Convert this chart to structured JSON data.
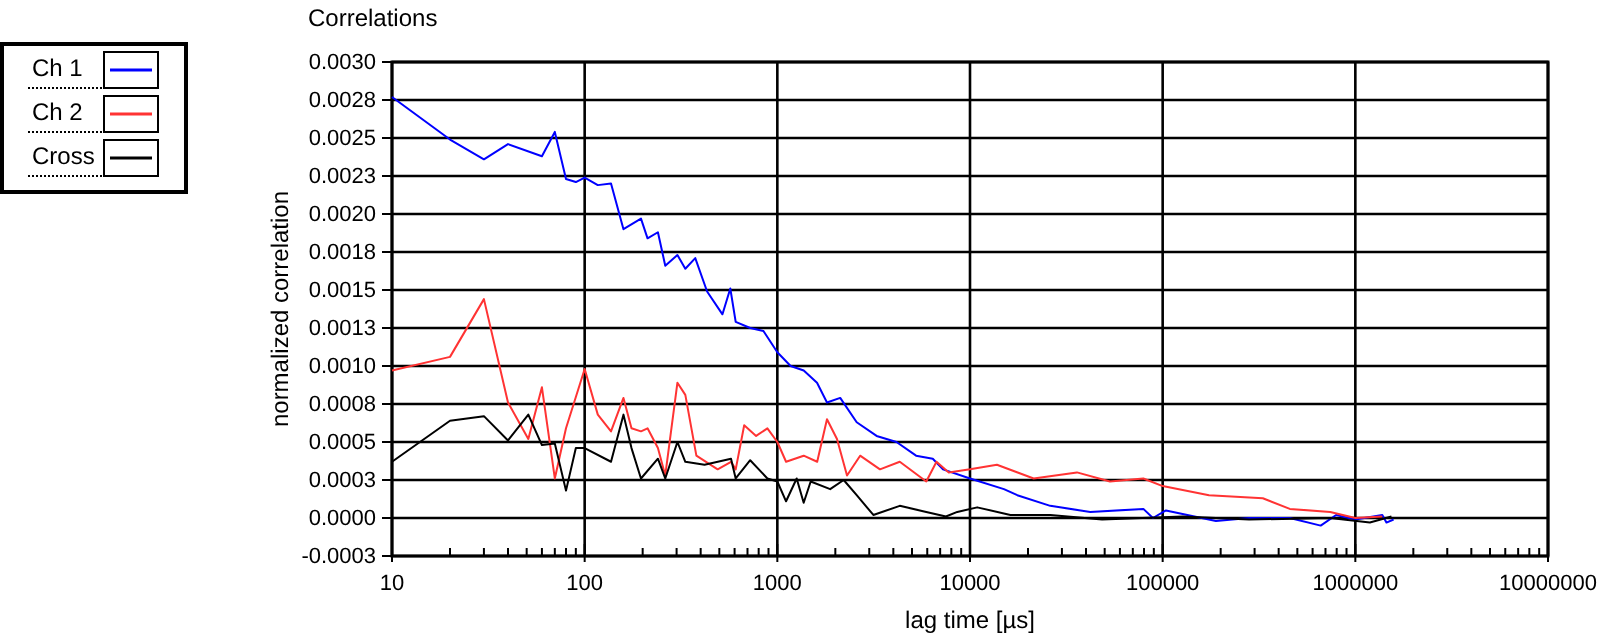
{
  "chart_data": {
    "type": "line",
    "title": "Correlations",
    "xlabel": "lag time [µs]",
    "ylabel": "normalized correlation",
    "log": "x",
    "grid": true,
    "legend": "top left",
    "line_style": "solid",
    "marker": "none",
    "xlim": [
      10,
      10000000
    ],
    "xticks": [
      10,
      {
        "value": 20,
        "label": null
      },
      {
        "value": 30,
        "label": null
      },
      {
        "value": 40,
        "label": null
      },
      {
        "value": 50,
        "label": null
      },
      {
        "value": 60,
        "label": null
      },
      {
        "value": 70,
        "label": null
      },
      {
        "value": 80,
        "label": null
      },
      {
        "value": 90,
        "label": null
      },
      100,
      {
        "value": 200,
        "label": null
      },
      {
        "value": 300,
        "label": null
      },
      {
        "value": 400,
        "label": null
      },
      {
        "value": 500,
        "label": null
      },
      {
        "value": 600,
        "label": null
      },
      {
        "value": 700,
        "label": null
      },
      {
        "value": 800,
        "label": null
      },
      {
        "value": 900,
        "label": null
      },
      1000,
      {
        "value": 2000,
        "label": null
      },
      {
        "value": 3000,
        "label": null
      },
      {
        "value": 4000,
        "label": null
      },
      {
        "value": 5000,
        "label": null
      },
      {
        "value": 6000,
        "label": null
      },
      {
        "value": 7000,
        "label": null
      },
      {
        "value": 8000,
        "label": null
      },
      {
        "value": 9000,
        "label": null
      },
      10000,
      {
        "value": 20000,
        "label": null
      },
      {
        "value": 30000,
        "label": null
      },
      {
        "value": 40000,
        "label": null
      },
      {
        "value": 50000,
        "label": null
      },
      {
        "value": 60000,
        "label": null
      },
      {
        "value": 70000,
        "label": null
      },
      {
        "value": 80000,
        "label": null
      },
      {
        "value": 90000,
        "label": null
      },
      100000,
      {
        "value": 200000,
        "label": null
      },
      {
        "value": 300000,
        "label": null
      },
      {
        "value": 400000,
        "label": null
      },
      {
        "value": 500000,
        "label": null
      },
      {
        "value": 600000,
        "label": null
      },
      {
        "value": 700000,
        "label": null
      },
      {
        "value": 800000,
        "label": null
      },
      {
        "value": 900000,
        "label": null
      },
      1000000,
      {
        "value": 2000000,
        "label": null
      },
      {
        "value": 3000000,
        "label": null
      },
      {
        "value": 4000000,
        "label": null
      },
      {
        "value": 5000000,
        "label": null
      },
      {
        "value": 6000000,
        "label": null
      },
      {
        "value": 7000000,
        "label": null
      },
      {
        "value": 8000000,
        "label": null
      },
      {
        "value": 9000000,
        "label": null
      },
      10000000
    ],
    "ylim": [
      -0.00025,
      0.003
    ],
    "yticks": [
      {
        "value": -0.00025,
        "label": "-0.0003"
      },
      {
        "value": 0,
        "label": "0.0000"
      },
      {
        "value": 0.00025,
        "label": "0.0003"
      },
      {
        "value": 0.0005,
        "label": "0.0005"
      },
      {
        "value": 0.00075,
        "label": "0.0008"
      },
      {
        "value": 0.001,
        "label": "0.0010"
      },
      {
        "value": 0.00125,
        "label": "0.0013"
      },
      {
        "value": 0.0015,
        "label": "0.0015"
      },
      {
        "value": 0.00175,
        "label": "0.0018"
      },
      {
        "value": 0.002,
        "label": "0.0020"
      },
      {
        "value": 0.00225,
        "label": "0.0023"
      },
      {
        "value": 0.0025,
        "label": "0.0025"
      },
      {
        "value": 0.00275,
        "label": "0.0028"
      },
      {
        "value": 0.003,
        "label": "0.0030"
      }
    ],
    "series": [
      {
        "name": "Ch 1",
        "color": "#0000ff",
        "x": [
          10,
          20,
          30,
          40,
          60,
          70,
          80,
          90,
          100,
          117,
          137,
          159,
          196,
          212,
          240,
          262,
          303,
          333,
          375,
          432,
          519,
          570,
          608,
          723,
          847,
          1000,
          1172,
          1371,
          1607,
          1810,
          2120,
          2582,
          3275,
          4154,
          5250,
          6410,
          7240,
          10000,
          15000,
          17600,
          26100,
          42100,
          79400,
          89000,
          104000,
          189000,
          281000,
          457000,
          661000,
          795000,
          1000000,
          1380000,
          1450000,
          1580000
        ],
        "values": [
          0.00277,
          0.00249,
          0.00236,
          0.00246,
          0.00238,
          0.00254,
          0.00223,
          0.00221,
          0.00224,
          0.00219,
          0.0022,
          0.0019,
          0.00197,
          0.00184,
          0.00188,
          0.00166,
          0.00173,
          0.00164,
          0.00171,
          0.00149,
          0.00134,
          0.00151,
          0.00129,
          0.00125,
          0.00123,
          0.00109,
          0.001,
          0.00097,
          0.00089,
          0.00076,
          0.00079,
          0.00063,
          0.00054,
          0.0005,
          0.00041,
          0.00039,
          0.00032,
          0.00026,
          0.00019,
          0.00015,
          8e-05,
          4e-05,
          6e-05,
          0,
          5e-05,
          -2e-05,
          0,
          0,
          -5e-05,
          2e-05,
          -1e-05,
          2e-05,
          -3e-05,
          -1e-05
        ]
      },
      {
        "name": "Ch 2",
        "color": "#ff3333",
        "x": [
          10,
          20,
          30,
          40,
          51,
          60,
          70,
          80,
          100,
          117,
          137,
          159,
          175,
          196,
          212,
          240,
          262,
          303,
          333,
          380,
          490,
          575,
          608,
          673,
          776,
          888,
          1000,
          1110,
          1370,
          1610,
          1810,
          2040,
          2300,
          2690,
          3410,
          4320,
          5930,
          6700,
          7760,
          10000,
          13800,
          21400,
          35900,
          53300,
          79400,
          100000,
          174000,
          331000,
          457000,
          741000,
          1000000,
          1380000
        ],
        "values": [
          0.00097,
          0.00106,
          0.00144,
          0.00076,
          0.00052,
          0.00086,
          0.00026,
          0.00059,
          0.00098,
          0.00068,
          0.00057,
          0.00079,
          0.00059,
          0.00057,
          0.00059,
          0.00046,
          0.00028,
          0.00089,
          0.00081,
          0.00041,
          0.00032,
          0.00037,
          0.00032,
          0.00061,
          0.00054,
          0.00059,
          0.0005,
          0.00037,
          0.00041,
          0.00037,
          0.00065,
          0.00052,
          0.00028,
          0.00041,
          0.00032,
          0.00037,
          0.00024,
          0.00037,
          0.0003,
          0.00032,
          0.00035,
          0.00026,
          0.0003,
          0.00024,
          0.00026,
          0.00021,
          0.00015,
          0.00013,
          6e-05,
          4e-05,
          0,
          1e-05
        ]
      },
      {
        "name": "Cross",
        "color": "#000000",
        "x": [
          10,
          20,
          30,
          40,
          51,
          60,
          70,
          80,
          90,
          100,
          137,
          159,
          175,
          196,
          240,
          262,
          303,
          333,
          419,
          575,
          608,
          723,
          888,
          1000,
          1110,
          1260,
          1370,
          1490,
          1880,
          2210,
          2582,
          3150,
          4320,
          5930,
          7500,
          8590,
          10900,
          16200,
          26100,
          48500,
          127000,
          281000,
          741000,
          1190000,
          1540000
        ],
        "values": [
          0.00037,
          0.00064,
          0.00067,
          0.00051,
          0.00068,
          0.00048,
          0.00049,
          0.00018,
          0.00046,
          0.00046,
          0.00037,
          0.00068,
          0.00046,
          0.00026,
          0.00039,
          0.00026,
          0.0005,
          0.00037,
          0.00035,
          0.00039,
          0.00026,
          0.00038,
          0.00026,
          0.00024,
          0.00011,
          0.00026,
          0.0001,
          0.00024,
          0.00019,
          0.00025,
          0.00015,
          2e-05,
          8e-05,
          4e-05,
          1e-05,
          4e-05,
          7e-05,
          2e-05,
          2e-05,
          -1e-05,
          1e-05,
          -1e-05,
          0,
          -3e-05,
          1e-05
        ]
      }
    ]
  }
}
